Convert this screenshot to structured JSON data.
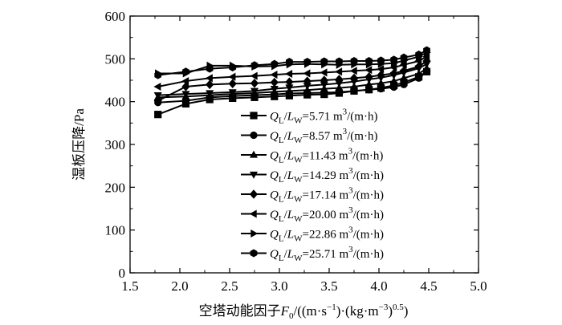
{
  "chart_data": {
    "type": "line",
    "title": "",
    "xlabel": {
      "main": "空塔动能因子",
      "var": "F",
      "var_sub": "0",
      "units_a": "/((m·s",
      "units_a_sup": "−1",
      "units_b": ")·(kg·m",
      "units_b_sup": "−3",
      "units_c": ")",
      "units_c_sup": "0.5",
      "units_end": ")"
    },
    "ylabel": "湿板压降/Pa",
    "xlim": [
      1.5,
      5.0
    ],
    "ylim": [
      0,
      600
    ],
    "xticks": [
      "1.5",
      "2.0",
      "2.5",
      "3.0",
      "3.5",
      "4.0",
      "4.5",
      "5.0"
    ],
    "yticks": [
      "0",
      "100",
      "200",
      "300",
      "400",
      "500",
      "600"
    ],
    "grid": false,
    "legend_position": "right-center",
    "x": [
      1.78,
      2.06,
      2.3,
      2.53,
      2.75,
      2.95,
      3.1,
      3.28,
      3.45,
      3.6,
      3.75,
      3.9,
      4.02,
      4.15,
      4.25,
      4.4,
      4.48
    ],
    "series": [
      {
        "name": "5.71",
        "marker": "square",
        "legend": {
          "q": "Q",
          "q_sub": "L",
          "sep": "/",
          "l": "L",
          "l_sub": "W",
          "value": "=5.71 m",
          "sup": "3",
          "unit": "/(m·h)"
        },
        "values": [
          370,
          395,
          405,
          408,
          410,
          412,
          414,
          416,
          417,
          420,
          425,
          428,
          432,
          438,
          445,
          458,
          470
        ]
      },
      {
        "name": "8.57",
        "marker": "circle",
        "legend": {
          "q": "Q",
          "q_sub": "L",
          "sep": "/",
          "l": "L",
          "l_sub": "W",
          "value": "=8.57 m",
          "sup": "3",
          "unit": "/(m·h)"
        },
        "values": [
          398,
          402,
          410,
          413,
          415,
          417,
          419,
          420,
          421,
          422,
          425,
          428,
          430,
          434,
          440,
          455,
          470
        ]
      },
      {
        "name": "11.43",
        "marker": "triangle-up",
        "legend": {
          "q": "Q",
          "q_sub": "L",
          "sep": "/",
          "l": "L",
          "l_sub": "W",
          "value": "=11.43 m",
          "sup": "3",
          "unit": "/(m·h)"
        },
        "values": [
          410,
          412,
          415,
          418,
          420,
          423,
          425,
          427,
          430,
          432,
          435,
          440,
          443,
          448,
          455,
          465,
          478
        ]
      },
      {
        "name": "14.29",
        "marker": "triangle-down",
        "legend": {
          "q": "Q",
          "q_sub": "L",
          "sep": "/",
          "l": "L",
          "l_sub": "W",
          "value": "=14.29 m",
          "sup": "3",
          "unit": "/(m·h)"
        },
        "values": [
          415,
          418,
          420,
          422,
          425,
          430,
          433,
          437,
          440,
          443,
          447,
          452,
          456,
          462,
          468,
          478,
          488
        ]
      },
      {
        "name": "17.14",
        "marker": "diamond",
        "legend": {
          "q": "Q",
          "q_sub": "L",
          "sep": "/",
          "l": "L",
          "l_sub": "W",
          "value": "=17.14 m",
          "sup": "3",
          "unit": "/(m·h)"
        },
        "values": [
          402,
          435,
          440,
          442,
          443,
          445,
          446,
          448,
          450,
          452,
          455,
          458,
          462,
          466,
          472,
          482,
          495
        ]
      },
      {
        "name": "20.00",
        "marker": "triangle-left",
        "legend": {
          "q": "Q",
          "q_sub": "L",
          "sep": "/",
          "l": "L",
          "l_sub": "W",
          "value": "=20.00 m",
          "sup": "3",
          "unit": "/(m·h)"
        },
        "values": [
          435,
          448,
          455,
          458,
          460,
          463,
          465,
          466,
          468,
          470,
          472,
          474,
          476,
          480,
          486,
          495,
          505
        ]
      },
      {
        "name": "22.86",
        "marker": "triangle-right",
        "legend": {
          "q": "Q",
          "q_sub": "L",
          "sep": "/",
          "l": "L",
          "l_sub": "W",
          "value": "=22.86 m",
          "sup": "3",
          "unit": "/(m·h)"
        },
        "values": [
          466,
          466,
          484,
          484,
          482,
          483,
          487,
          488,
          487,
          486,
          487,
          487,
          488,
          490,
          496,
          505,
          515
        ]
      },
      {
        "name": "25.71",
        "marker": "hexagon",
        "legend": {
          "q": "Q",
          "q_sub": "L",
          "sep": "/",
          "l": "L",
          "l_sub": "W",
          "value": "=25.71 m",
          "sup": "3",
          "unit": "/(m·h)"
        },
        "values": [
          462,
          470,
          477,
          480,
          485,
          488,
          493,
          493,
          494,
          494,
          495,
          495,
          496,
          498,
          503,
          510,
          520
        ]
      }
    ]
  }
}
